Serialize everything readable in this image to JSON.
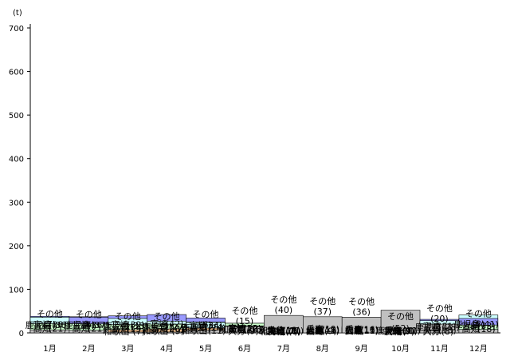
{
  "chart_data": {
    "type": "bar",
    "ylabel": "(t)",
    "ylim": [
      0,
      700
    ],
    "yticks": [
      0,
      100,
      200,
      300,
      400,
      500,
      600,
      700
    ],
    "categories": [
      "1月",
      "2月",
      "3月",
      "4月",
      "5月",
      "6月",
      "7月",
      "8月",
      "9月",
      "10月",
      "11月",
      "12月"
    ],
    "colors": {
      "宮崎": "#9999ff",
      "鹿児島": "#ccffff",
      "高知": "#ccffcc",
      "和歌山": "#ffcc99",
      "その他": "#c0c0c0",
      "大分": "#ffff99",
      "茨城": "#ffffcc",
      "北海道": "#ff99cc",
      "兵庫": "#cc99ff",
      "福島": "#99ccff",
      "広島": "#ff8080",
      "愛媛": "#ccccff"
    },
    "months": [
      {
        "month": "1月",
        "segments": [
          {
            "name": "宮崎",
            "value": 38
          },
          {
            "name": "鹿児島",
            "value": 36
          },
          {
            "name": "高知",
            "value": 21
          },
          {
            "name": "その他",
            "value": 7
          }
        ]
      },
      {
        "month": "2月",
        "segments": [
          {
            "name": "鹿児島",
            "value": 37
          },
          {
            "name": "宮崎",
            "value": 36
          },
          {
            "name": "高知",
            "value": 21
          },
          {
            "name": "その他",
            "value": 6
          }
        ]
      },
      {
        "month": "3月",
        "segments": [
          {
            "name": "宮崎",
            "value": 39
          },
          {
            "name": "鹿児島",
            "value": 33
          },
          {
            "name": "高知",
            "value": 19
          },
          {
            "name": "和歌山",
            "value": 7
          },
          {
            "name": "その他",
            "value": 2
          }
        ]
      },
      {
        "month": "4月",
        "segments": [
          {
            "name": "宮崎",
            "value": 42
          },
          {
            "name": "鹿児島",
            "value": 27
          },
          {
            "name": "高知",
            "value": 20
          },
          {
            "name": "和歌山",
            "value": 9
          },
          {
            "name": "その他",
            "value": 2
          }
        ]
      },
      {
        "month": "5月",
        "segments": [
          {
            "name": "宮崎",
            "value": 34
          },
          {
            "name": "高知",
            "value": 25
          },
          {
            "name": "鹿児島",
            "value": 24
          },
          {
            "name": "和歌山",
            "value": 11
          },
          {
            "name": "その他",
            "value": 6
          }
        ]
      },
      {
        "month": "6月",
        "segments": [
          {
            "name": "宮崎",
            "value": 22
          },
          {
            "name": "高知",
            "value": 22
          },
          {
            "name": "茨城",
            "value": 16
          },
          {
            "name": "和歌山",
            "value": 16
          },
          {
            "name": "大分",
            "value": 9
          },
          {
            "name": "その他",
            "value": 15
          }
        ]
      },
      {
        "month": "7月",
        "segments": [
          {
            "name": "大分",
            "value": 13
          },
          {
            "name": "和歌山",
            "value": 11
          },
          {
            "name": "兵庫",
            "value": 11
          },
          {
            "name": "宮崎",
            "value": 10
          },
          {
            "name": "北海道",
            "value": 8
          },
          {
            "name": "茨城",
            "value": 7
          },
          {
            "name": "その他",
            "value": 40
          }
        ]
      },
      {
        "month": "8月",
        "segments": [
          {
            "name": "兵庫",
            "value": 19
          },
          {
            "name": "広島",
            "value": 13
          },
          {
            "name": "愛媛",
            "value": 11
          },
          {
            "name": "大分",
            "value": 11
          },
          {
            "name": "福島",
            "value": 9
          },
          {
            "name": "その他",
            "value": 37
          }
        ]
      },
      {
        "month": "9月",
        "segments": [
          {
            "name": "兵庫",
            "value": 16
          },
          {
            "name": "福島",
            "value": 13
          },
          {
            "name": "大分",
            "value": 13
          },
          {
            "name": "愛媛",
            "value": 11
          },
          {
            "name": "広島",
            "value": 11
          },
          {
            "name": "その他",
            "value": 36
          }
        ]
      },
      {
        "month": "10月",
        "segments": [
          {
            "name": "鹿児島",
            "value": 11
          },
          {
            "name": "兵庫",
            "value": 11
          },
          {
            "name": "大分",
            "value": 10
          },
          {
            "name": "宮崎",
            "value": 9
          },
          {
            "name": "茨城",
            "value": 7
          },
          {
            "name": "その他",
            "value": 52
          }
        ]
      },
      {
        "month": "11月",
        "segments": [
          {
            "name": "宮崎",
            "value": 31
          },
          {
            "name": "鹿児島",
            "value": 28
          },
          {
            "name": "高知",
            "value": 13
          },
          {
            "name": "大分",
            "value": 8
          },
          {
            "name": "その他",
            "value": 20
          }
        ]
      },
      {
        "month": "12月",
        "segments": [
          {
            "name": "鹿児島",
            "value": 41
          },
          {
            "name": "宮崎",
            "value": 33
          },
          {
            "name": "高知",
            "value": 18
          },
          {
            "name": "その他",
            "value": 8
          }
        ]
      }
    ]
  }
}
